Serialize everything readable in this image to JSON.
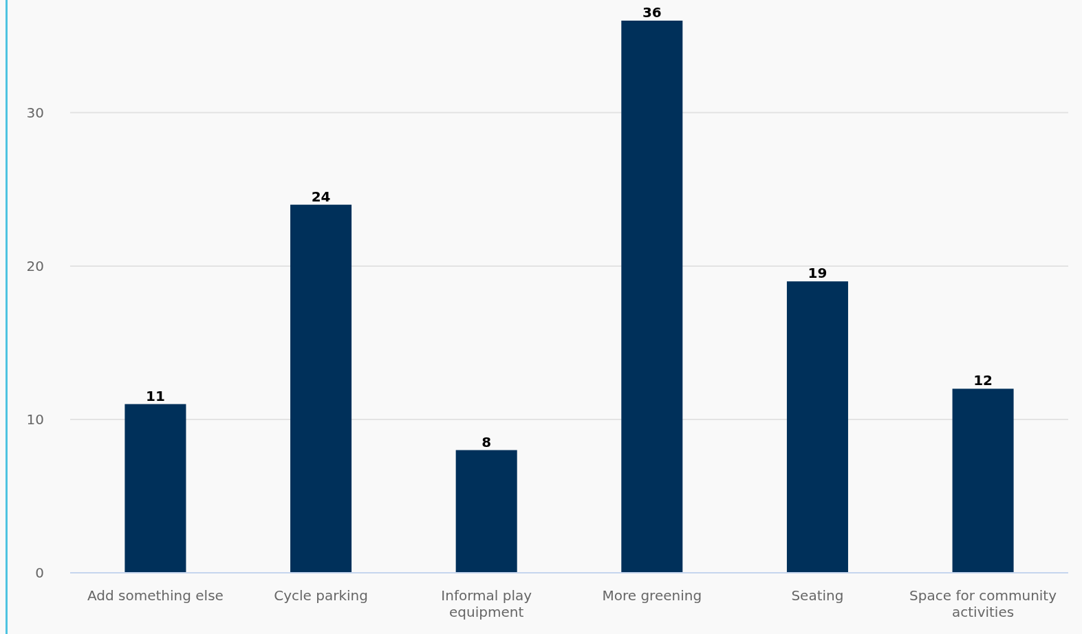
{
  "chart_data": {
    "type": "bar",
    "categories": [
      "Add something else",
      "Cycle parking",
      "Informal play equipment",
      "More greening",
      "Seating",
      "Space for community activities"
    ],
    "values": [
      11,
      24,
      8,
      36,
      19,
      12
    ],
    "color": "#00305a",
    "ylim": [
      0,
      36
    ],
    "yticks": [
      0,
      10,
      20,
      30
    ],
    "grid": "y",
    "data_labels": true
  }
}
